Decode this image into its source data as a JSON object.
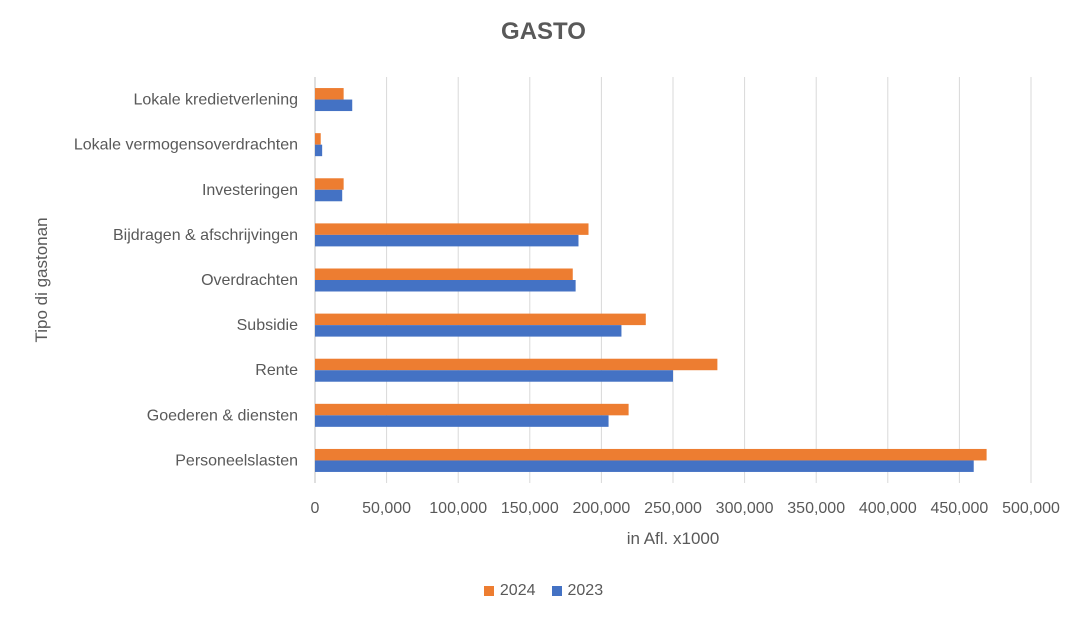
{
  "chart_data": {
    "type": "bar",
    "orientation": "horizontal",
    "title": "GASTO",
    "xlabel": "in Afl. x1000",
    "ylabel": "Tipo di gastonan",
    "xlim": [
      0,
      500000
    ],
    "xticks": [
      "0",
      "50,000",
      "100,000",
      "150,000",
      "200,000",
      "250,000",
      "300,000",
      "350,000",
      "400,000",
      "450,000",
      "500,000"
    ],
    "grid": "vertical",
    "legend_position": "bottom",
    "categories": [
      "Lokale kredietverlening",
      "Lokale vermogensoverdrachten",
      "Investeringen",
      "Bijdragen & afschrijvingen",
      "Overdrachten",
      "Subsidie",
      "Rente",
      "Goederen & diensten",
      "Personeelslasten"
    ],
    "series": [
      {
        "name": "2024",
        "color": "#ED7D31",
        "values": [
          20000,
          4000,
          20000,
          191000,
          180000,
          231000,
          281000,
          219000,
          469000
        ]
      },
      {
        "name": "2023",
        "color": "#4472C4",
        "values": [
          26000,
          5000,
          19000,
          184000,
          182000,
          214000,
          250000,
          205000,
          460000
        ]
      }
    ]
  }
}
